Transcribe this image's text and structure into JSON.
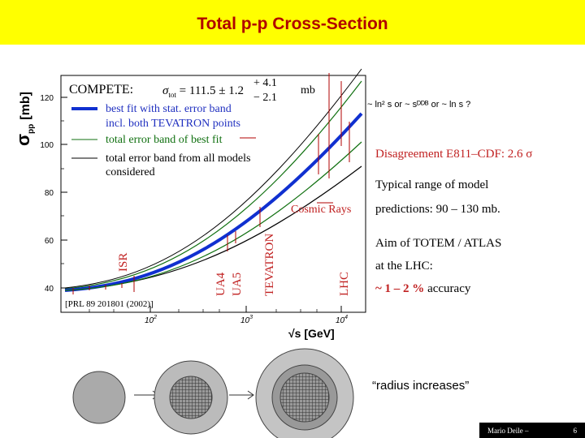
{
  "header": {
    "title": "Total p-p Cross-Section"
  },
  "plot": {
    "y_axis_label": {
      "symbol": "σ",
      "sub": "pp",
      "unit": "[mb]"
    },
    "y_tick_labels": [
      "120",
      "100",
      "80",
      "60",
      "40"
    ],
    "x_tick_labels": [
      {
        "base": "10",
        "exp": "2"
      },
      {
        "base": "10",
        "exp": "3"
      },
      {
        "base": "10",
        "exp": "4"
      }
    ],
    "x_axis_label": "√s [GeV]",
    "legend": {
      "heading": "COMPETE:",
      "formula": {
        "lhs": "σ",
        "lhs_sub": "tot",
        "eq": " = 111.5 ± 1.2",
        "up": "+ 4.1",
        "down": "− 2.1",
        "unit": "mb"
      },
      "entries": [
        "best fit with stat. error band",
        "incl. both TEVATRON points",
        "total error band of best fit",
        "total error band from all models",
        "considered"
      ]
    },
    "experiments": [
      "ISR",
      "UA4",
      "UA5",
      "TEVATRON",
      "LHC"
    ],
    "cosmic": "Cosmic Rays",
    "reference": "[PRL 89 201801 (2002)]"
  },
  "notes": {
    "growth": "~ ln² s   or   ~ sᴰᴰᴮ    or ~ ln s  ?",
    "disagreement": "Disagreement E811–CDF: 2.6 σ",
    "typical": [
      "Typical range of model",
      "predictions: 90 – 130 mb."
    ],
    "aim": [
      "Aim of TOTEM / ATLAS",
      "at the LHC:"
    ],
    "accuracy": {
      "value": "~ 1 – 2 %",
      "rest": " accuracy"
    }
  },
  "diagram": {
    "caption": "“radius increases”"
  },
  "footer": {
    "author": "Mario Deile –",
    "page": "6"
  }
}
